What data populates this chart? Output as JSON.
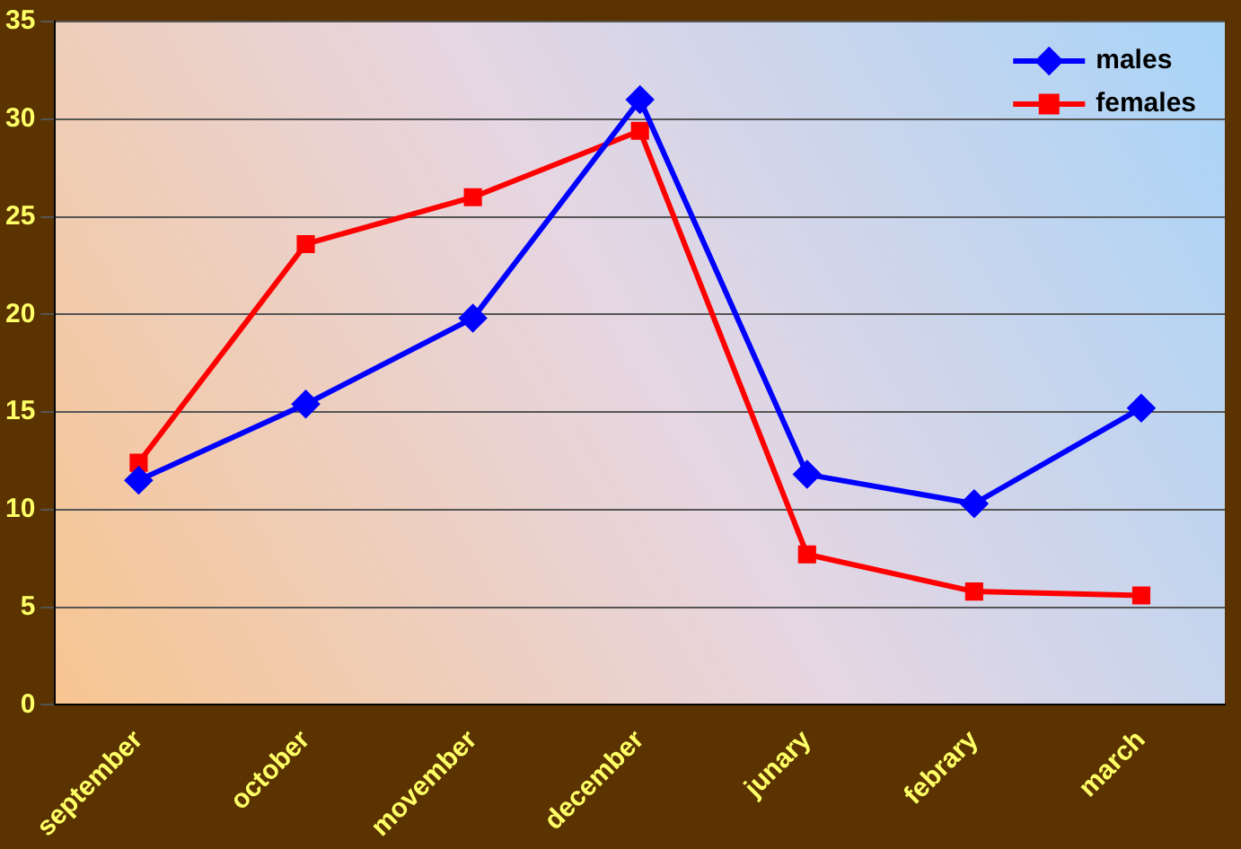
{
  "chart_data": {
    "type": "line",
    "categories": [
      "september",
      "october",
      "movember",
      "december",
      "junary",
      "febrary",
      "march"
    ],
    "series": [
      {
        "name": "males",
        "color": "#0000ff",
        "marker": "diamond",
        "values": [
          11.5,
          15.4,
          19.8,
          31,
          11.8,
          10.3,
          15.2
        ]
      },
      {
        "name": "females",
        "color": "#ff0000",
        "marker": "square",
        "values": [
          12.4,
          23.6,
          26,
          29.4,
          7.7,
          5.8,
          5.6
        ]
      }
    ],
    "ylim": [
      0,
      35
    ],
    "yticks": [
      0,
      5,
      10,
      15,
      20,
      25,
      30,
      35
    ],
    "grid": "y",
    "legend": "top right",
    "line_style": "solid"
  }
}
